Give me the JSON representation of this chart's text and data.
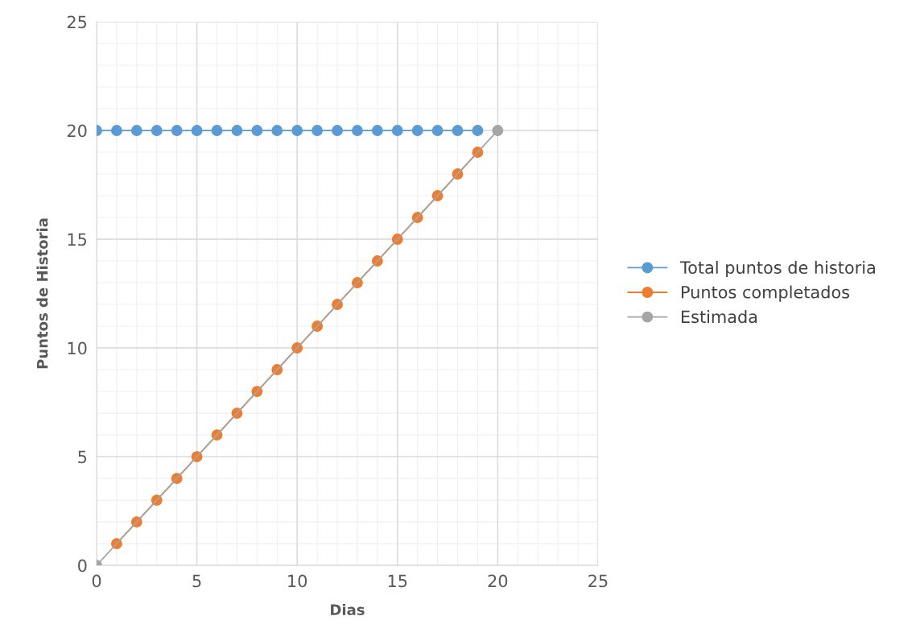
{
  "chart_data": {
    "type": "line",
    "xlabel": "Dias",
    "ylabel": "Puntos de Historia",
    "series": [
      {
        "name": "Total puntos de historia",
        "color": "#5b9bd5",
        "x": [
          0,
          1,
          2,
          3,
          4,
          5,
          6,
          7,
          8,
          9,
          10,
          11,
          12,
          13,
          14,
          15,
          16,
          17,
          18,
          19
        ],
        "values": [
          20,
          20,
          20,
          20,
          20,
          20,
          20,
          20,
          20,
          20,
          20,
          20,
          20,
          20,
          20,
          20,
          20,
          20,
          20,
          20
        ]
      },
      {
        "name": "Puntos completados",
        "color": "#ed7d31",
        "x": [
          1,
          2,
          3,
          4,
          5,
          6,
          7,
          8,
          9,
          10,
          11,
          12,
          13,
          14,
          15,
          16,
          17,
          18,
          19
        ],
        "values": [
          1,
          2,
          3,
          4,
          5,
          6,
          7,
          8,
          9,
          10,
          11,
          12,
          13,
          14,
          15,
          16,
          17,
          18,
          19
        ]
      },
      {
        "name": "Estimada",
        "color": "#a5a5a5",
        "x": [
          0,
          20
        ],
        "values": [
          0,
          20
        ]
      }
    ],
    "xlim": [
      0,
      25
    ],
    "ylim": [
      0,
      25
    ],
    "xticks": [
      0,
      5,
      10,
      15,
      20,
      25
    ],
    "yticks": [
      0,
      5,
      10,
      15,
      20,
      25
    ],
    "grid": true,
    "legend": "right",
    "marker": "circle",
    "line_style": "solid"
  }
}
